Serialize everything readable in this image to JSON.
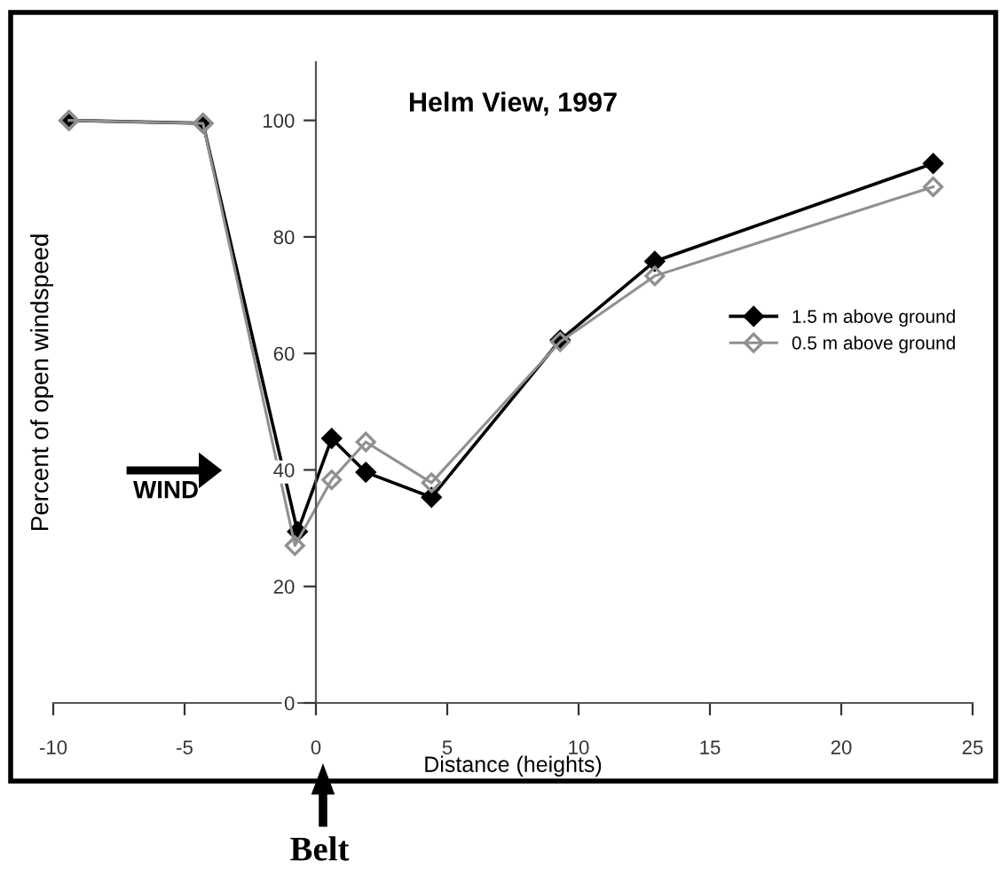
{
  "chart_data": {
    "type": "line",
    "title": "Helm View, 1997",
    "xlabel": "Distance (heights)",
    "ylabel": "Percent of open windspeed",
    "annotations": [
      "WIND",
      "Belt"
    ],
    "xlim": [
      -10,
      25
    ],
    "xticks": [
      -10,
      -5,
      0,
      5,
      10,
      15,
      20,
      25
    ],
    "ylim": [
      0,
      110
    ],
    "yticks": [
      0,
      20,
      40,
      60,
      80,
      100
    ],
    "grid": false,
    "legend": "right",
    "marker": "diamond",
    "line_style": "solid",
    "series": [
      {
        "name": "1.5 m above ground",
        "color": "#000000",
        "x": [
          -9.4,
          -4.3,
          -0.7,
          0.6,
          1.9,
          4.4,
          9.3,
          12.9,
          23.5
        ],
        "values": [
          100,
          99.5,
          29.4,
          45.4,
          39.6,
          35.3,
          62.3,
          75.8,
          92.6
        ]
      },
      {
        "name": "0.5 m above ground",
        "color": "#909090",
        "x": [
          -9.4,
          -4.3,
          -0.8,
          0.6,
          1.9,
          4.4,
          9.3,
          12.9,
          23.5
        ],
        "values": [
          100,
          99.5,
          27,
          38.3,
          44.8,
          37.8,
          62,
          73.3,
          88.6
        ]
      }
    ]
  }
}
